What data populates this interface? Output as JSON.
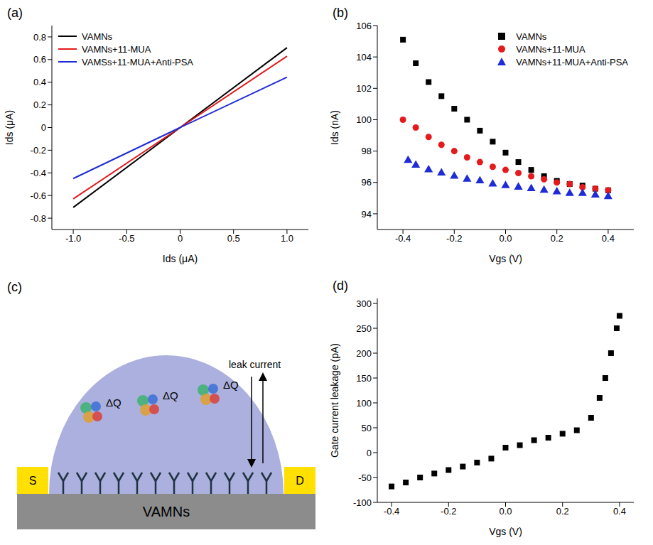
{
  "chart_data": [
    {
      "title": "(a)",
      "type": "line",
      "x_label": "Ids (μA)",
      "y_label": "Ids (μA)",
      "x": [
        -1,
        0,
        1
      ],
      "series": [
        {
          "name": "VAMNs",
          "color": "#000000",
          "values": [
            -0.705,
            0,
            0.705
          ],
          "line_style": "solid"
        },
        {
          "name": "VAMNs+11-MUA",
          "color": "#e41a1c",
          "values": [
            -0.63,
            0,
            0.63
          ],
          "line_style": "solid"
        },
        {
          "name": "VAMSs+11-MUA+Anti-PSA",
          "color": "#1e2cd6",
          "values": [
            -0.45,
            0,
            0.445
          ],
          "line_style": "solid"
        }
      ],
      "xlim": [
        -1.2,
        1.2
      ],
      "xticks": [
        {
          "value": -1,
          "label": "-1.0"
        },
        -0.5,
        0,
        0.5,
        {
          "value": 1,
          "label": "1.0"
        }
      ],
      "ylim": [
        -0.9,
        0.9
      ],
      "yticks": [
        -0.8,
        -0.6,
        -0.4,
        -0.2,
        0,
        0.2,
        0.4,
        0.6,
        0.8
      ],
      "legend": "upper left",
      "grid": false
    },
    {
      "title": "(b)",
      "type": "scatter",
      "x_label": "Vgs (V)",
      "y_label": "Ids (nA)",
      "series": [
        {
          "name": "VAMNs",
          "color": "#000000",
          "marker": "square",
          "x": [
            -0.4,
            -0.35,
            -0.3,
            -0.25,
            -0.2,
            -0.15,
            -0.1,
            -0.05,
            0,
            0.05,
            0.1,
            0.15,
            0.2,
            0.25,
            0.3,
            0.35,
            0.4
          ],
          "values": [
            105.1,
            103.6,
            102.4,
            101.5,
            100.7,
            100.0,
            99.3,
            98.6,
            97.9,
            97.3,
            96.8,
            96.4,
            96.1,
            95.9,
            95.8,
            95.6,
            95.5
          ]
        },
        {
          "name": "VAMNs+11-MUA",
          "color": "#e41a1c",
          "marker": "circle",
          "x": [
            -0.4,
            -0.35,
            -0.3,
            -0.25,
            -0.2,
            -0.15,
            -0.1,
            -0.05,
            0,
            0.05,
            0.1,
            0.15,
            0.2,
            0.25,
            0.3,
            0.35,
            0.4
          ],
          "values": [
            100.0,
            99.5,
            98.9,
            98.4,
            98.0,
            97.6,
            97.3,
            97.0,
            96.8,
            96.6,
            96.4,
            96.2,
            96.0,
            95.9,
            95.7,
            95.6,
            95.5
          ]
        },
        {
          "name": "VAMNs+11-MUA+Anti-PSA",
          "color": "#1e2cd6",
          "marker": "triangle",
          "x": [
            -0.38,
            -0.35,
            -0.3,
            -0.25,
            -0.2,
            -0.15,
            -0.1,
            -0.05,
            0,
            0.05,
            0.1,
            0.15,
            0.2,
            0.25,
            0.3,
            0.35,
            0.4
          ],
          "values": [
            97.4,
            97.1,
            96.8,
            96.6,
            96.4,
            96.2,
            96.1,
            95.9,
            95.8,
            95.7,
            95.6,
            95.5,
            95.4,
            95.3,
            95.3,
            95.2,
            95.1
          ]
        }
      ],
      "xlim": [
        -0.5,
        0.5
      ],
      "xticks": [
        -0.4,
        -0.2,
        {
          "value": 0,
          "label": "0.0"
        },
        0.2,
        0.4
      ],
      "ylim": [
        93,
        106
      ],
      "yticks": [
        94,
        96,
        98,
        100,
        102,
        104,
        106
      ],
      "legend": "upper right",
      "grid": false
    },
    {
      "title": "(d)",
      "type": "scatter",
      "x_label": "Vgs (V)",
      "y_label": "Gate current leakage (pA)",
      "series": [
        {
          "color": "#000000",
          "marker": "square",
          "x": [
            -0.4,
            -0.35,
            -0.3,
            -0.25,
            -0.2,
            -0.15,
            -0.1,
            -0.05,
            0,
            0.05,
            0.1,
            0.15,
            0.2,
            0.25,
            0.3,
            0.33,
            0.35,
            0.37,
            0.39,
            0.4
          ],
          "values": [
            -68,
            -60,
            -50,
            -42,
            -35,
            -28,
            -20,
            -12,
            10,
            15,
            25,
            30,
            38,
            45,
            70,
            110,
            150,
            200,
            250,
            275
          ]
        }
      ],
      "xlim": [
        -0.45,
        0.45
      ],
      "xticks": [
        -0.4,
        -0.2,
        {
          "value": 0,
          "label": "0.0"
        },
        0.2,
        0.4
      ],
      "ylim": [
        -100,
        310
      ],
      "yticks": [
        -100,
        -50,
        0,
        50,
        100,
        150,
        200,
        250,
        300
      ],
      "grid": false
    }
  ],
  "diagram": {
    "title": "(c)",
    "charges": [
      "ΔQ",
      "ΔQ",
      "ΔQ"
    ],
    "leak": "leak current",
    "source": "S",
    "drain": "D",
    "substrate": "VAMNs"
  }
}
